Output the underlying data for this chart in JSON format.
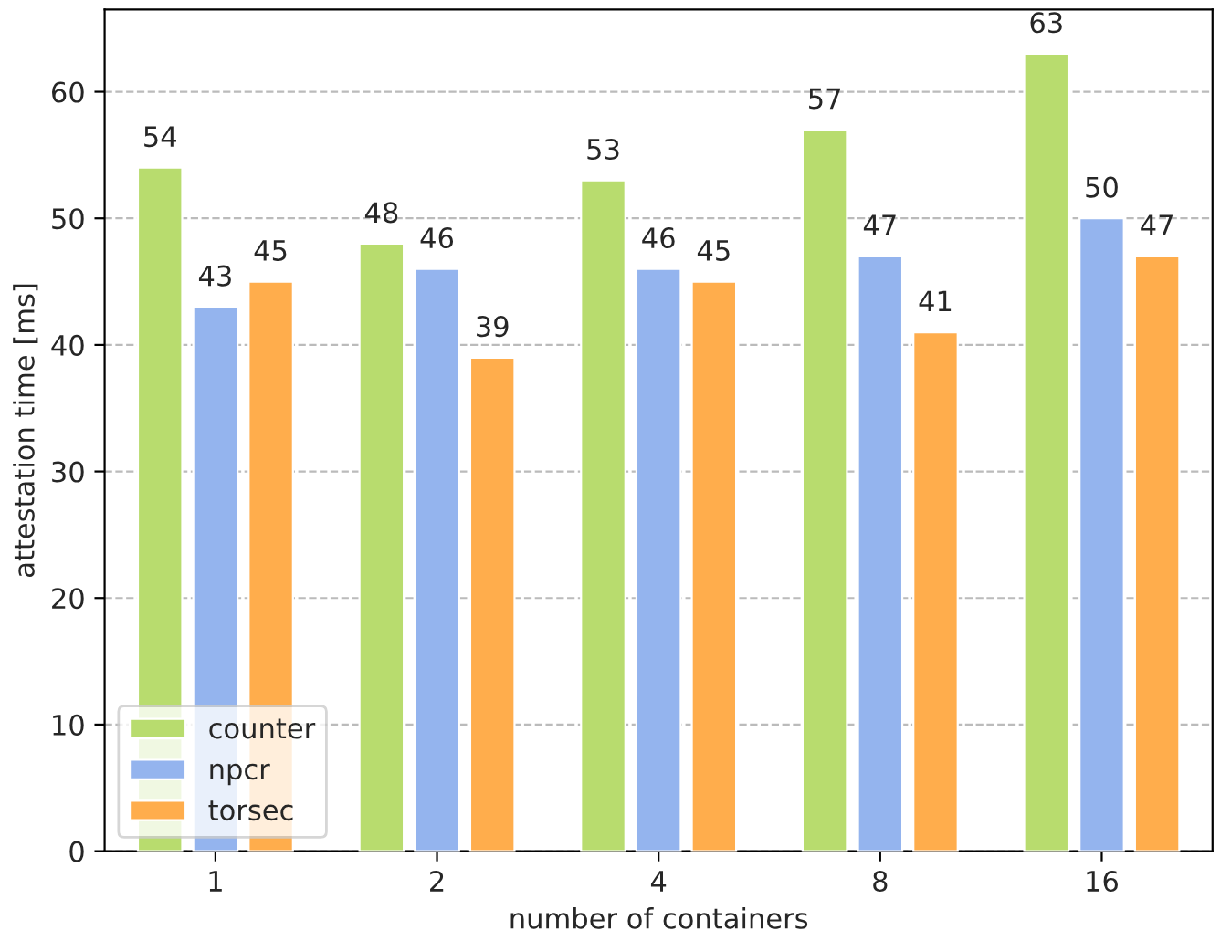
{
  "chart_data": {
    "type": "bar",
    "xlabel": "number of containers",
    "ylabel": "attestation time [ms]",
    "categories": [
      "1",
      "2",
      "4",
      "8",
      "16"
    ],
    "series": [
      {
        "name": "counter",
        "color": "#b8dc6e",
        "values": [
          54,
          48,
          53,
          57,
          63
        ]
      },
      {
        "name": "npcr",
        "color": "#94b4ee",
        "values": [
          43,
          46,
          46,
          47,
          50
        ]
      },
      {
        "name": "torsec",
        "color": "#ffad4c",
        "values": [
          45,
          39,
          45,
          41,
          47
        ]
      }
    ],
    "ylim": [
      0,
      66.5
    ],
    "yticks": [
      0,
      10,
      20,
      30,
      40,
      50,
      60
    ],
    "grid": "y",
    "legend": "lower left",
    "data_labels": true
  }
}
